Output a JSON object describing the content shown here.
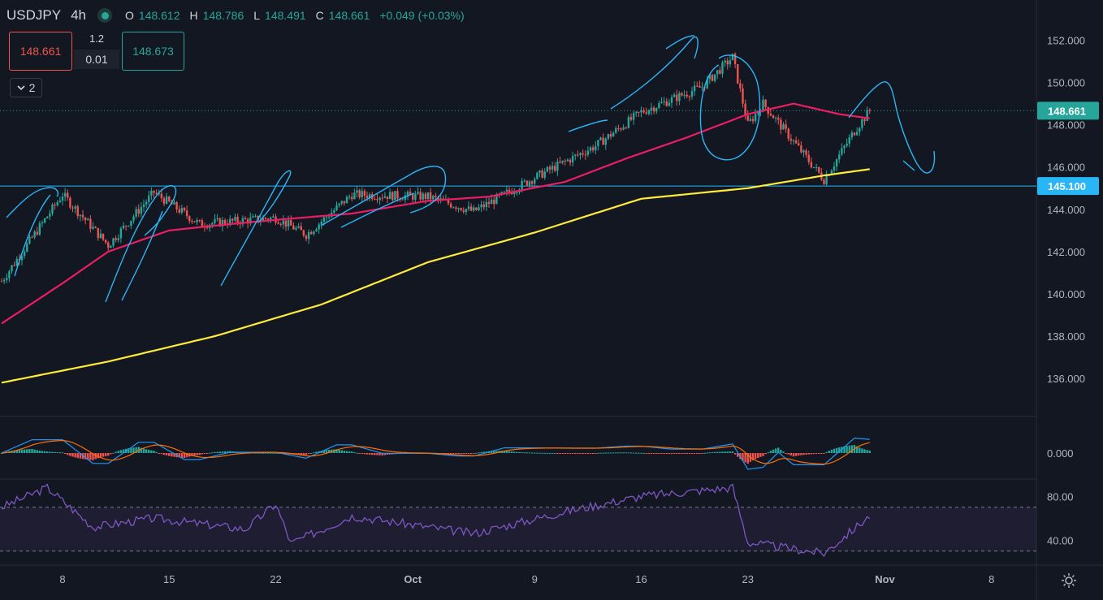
{
  "header": {
    "symbol": "USDJPY",
    "timeframe": "4h",
    "open_label": "O",
    "open": "148.612",
    "high_label": "H",
    "high": "148.786",
    "low_label": "L",
    "low": "148.491",
    "close_label": "C",
    "close": "148.661",
    "change": "+0.049 (+0.03%)"
  },
  "trade_panel": {
    "sell_price": "148.661",
    "spread": "1.2",
    "lot": "0.01",
    "buy_price": "148.673"
  },
  "indicators_collapsed_count": "2",
  "colors": {
    "background": "#131722",
    "up": "#26a69a",
    "down": "#ef5350",
    "ma_fast": "#e91e63",
    "ma_slow": "#ffeb3b",
    "drawings": "#29b6f6",
    "rsi": "#7e57c2",
    "macd_line": "#2196f3",
    "signal_line": "#ff6d00"
  },
  "icons": [
    "chevron-down-icon",
    "gear-icon",
    "market-status-dot-icon"
  ],
  "chart_data": {
    "type": "candlestick",
    "symbol": "USDJPY",
    "interval": "4h",
    "y_axis_labels": [
      "152.000",
      "150.000",
      "148.000",
      "146.000",
      "144.000",
      "142.000",
      "140.000",
      "138.000",
      "136.000"
    ],
    "ylim": [
      134.2,
      153.9
    ],
    "x_axis_labels": [
      "8",
      "15",
      "22",
      "Oct",
      "9",
      "16",
      "23",
      "Nov",
      "8"
    ],
    "last_price": "148.661",
    "horizontal_line": "145.100",
    "key_closes": [
      {
        "date": "Sep 4",
        "value": 140.6
      },
      {
        "date": "Sep 8",
        "value": 144.7
      },
      {
        "date": "Sep 11",
        "value": 142.3
      },
      {
        "date": "Sep 14",
        "value": 144.8
      },
      {
        "date": "Sep 17",
        "value": 143.3
      },
      {
        "date": "Sep 22",
        "value": 143.6
      },
      {
        "date": "Sep 24",
        "value": 142.8
      },
      {
        "date": "Sep 27",
        "value": 144.7
      },
      {
        "date": "Oct 2",
        "value": 144.6
      },
      {
        "date": "Oct 5",
        "value": 143.9
      },
      {
        "date": "Oct 9",
        "value": 145.5
      },
      {
        "date": "Oct 13",
        "value": 147.0
      },
      {
        "date": "Oct 16",
        "value": 148.6
      },
      {
        "date": "Oct 20",
        "value": 149.8
      },
      {
        "date": "Oct 22",
        "value": 151.2
      },
      {
        "date": "Oct 23",
        "value": 148.0
      },
      {
        "date": "Oct 24",
        "value": 149.0
      },
      {
        "date": "Oct 26",
        "value": 147.2
      },
      {
        "date": "Oct 28",
        "value": 145.4
      },
      {
        "date": "Oct 30",
        "value": 147.7
      },
      {
        "date": "Oct 31",
        "value": 148.661
      }
    ],
    "series": [
      {
        "kind": "moving_average_fast",
        "points": [
          {
            "date": "Sep 4",
            "value": 138.6
          },
          {
            "date": "Sep 8",
            "value": 140.5
          },
          {
            "date": "Sep 11",
            "value": 142.0
          },
          {
            "date": "Sep 15",
            "value": 143.0
          },
          {
            "date": "Sep 19",
            "value": 143.3
          },
          {
            "date": "Sep 22",
            "value": 143.5
          },
          {
            "date": "Sep 27",
            "value": 143.8
          },
          {
            "date": "Oct 2",
            "value": 144.4
          },
          {
            "date": "Oct 6",
            "value": 144.6
          },
          {
            "date": "Oct 11",
            "value": 145.3
          },
          {
            "date": "Oct 15",
            "value": 146.4
          },
          {
            "date": "Oct 19",
            "value": 147.4
          },
          {
            "date": "Oct 23",
            "value": 148.5
          },
          {
            "date": "Oct 26",
            "value": 149.0
          },
          {
            "date": "Oct 29",
            "value": 148.5
          },
          {
            "date": "Oct 31",
            "value": 148.3
          }
        ]
      },
      {
        "kind": "moving_average_slow",
        "points": [
          {
            "date": "Sep 4",
            "value": 135.8
          },
          {
            "date": "Sep 11",
            "value": 136.8
          },
          {
            "date": "Sep 18",
            "value": 138.0
          },
          {
            "date": "Sep 25",
            "value": 139.5
          },
          {
            "date": "Oct 2",
            "value": 141.5
          },
          {
            "date": "Oct 9",
            "value": 142.9
          },
          {
            "date": "Oct 16",
            "value": 144.5
          },
          {
            "date": "Oct 23",
            "value": 145.0
          },
          {
            "date": "Oct 28",
            "value": 145.6
          },
          {
            "date": "Oct 31",
            "value": 145.9
          }
        ]
      }
    ],
    "macd": {
      "axis_labels": [
        "0.000"
      ],
      "histogram_summary": "negative at late October, rising back to positive by Oct 31"
    },
    "rsi": {
      "axis_labels": [
        "80.00",
        "40.00"
      ],
      "band": [
        30,
        70
      ],
      "points": [
        {
          "date": "Sep 4",
          "value": 70
        },
        {
          "date": "Sep 7",
          "value": 88
        },
        {
          "date": "Sep 10",
          "value": 52
        },
        {
          "date": "Sep 14",
          "value": 60
        },
        {
          "date": "Sep 20",
          "value": 50
        },
        {
          "date": "Sep 22",
          "value": 73
        },
        {
          "date": "Sep 23",
          "value": 37
        },
        {
          "date": "Sep 27",
          "value": 62
        },
        {
          "date": "Oct 5",
          "value": 46
        },
        {
          "date": "Oct 11",
          "value": 66
        },
        {
          "date": "Oct 16",
          "value": 80
        },
        {
          "date": "Oct 22",
          "value": 88
        },
        {
          "date": "Oct 23",
          "value": 38
        },
        {
          "date": "Oct 28",
          "value": 28
        },
        {
          "date": "Oct 31",
          "value": 62
        }
      ]
    }
  }
}
